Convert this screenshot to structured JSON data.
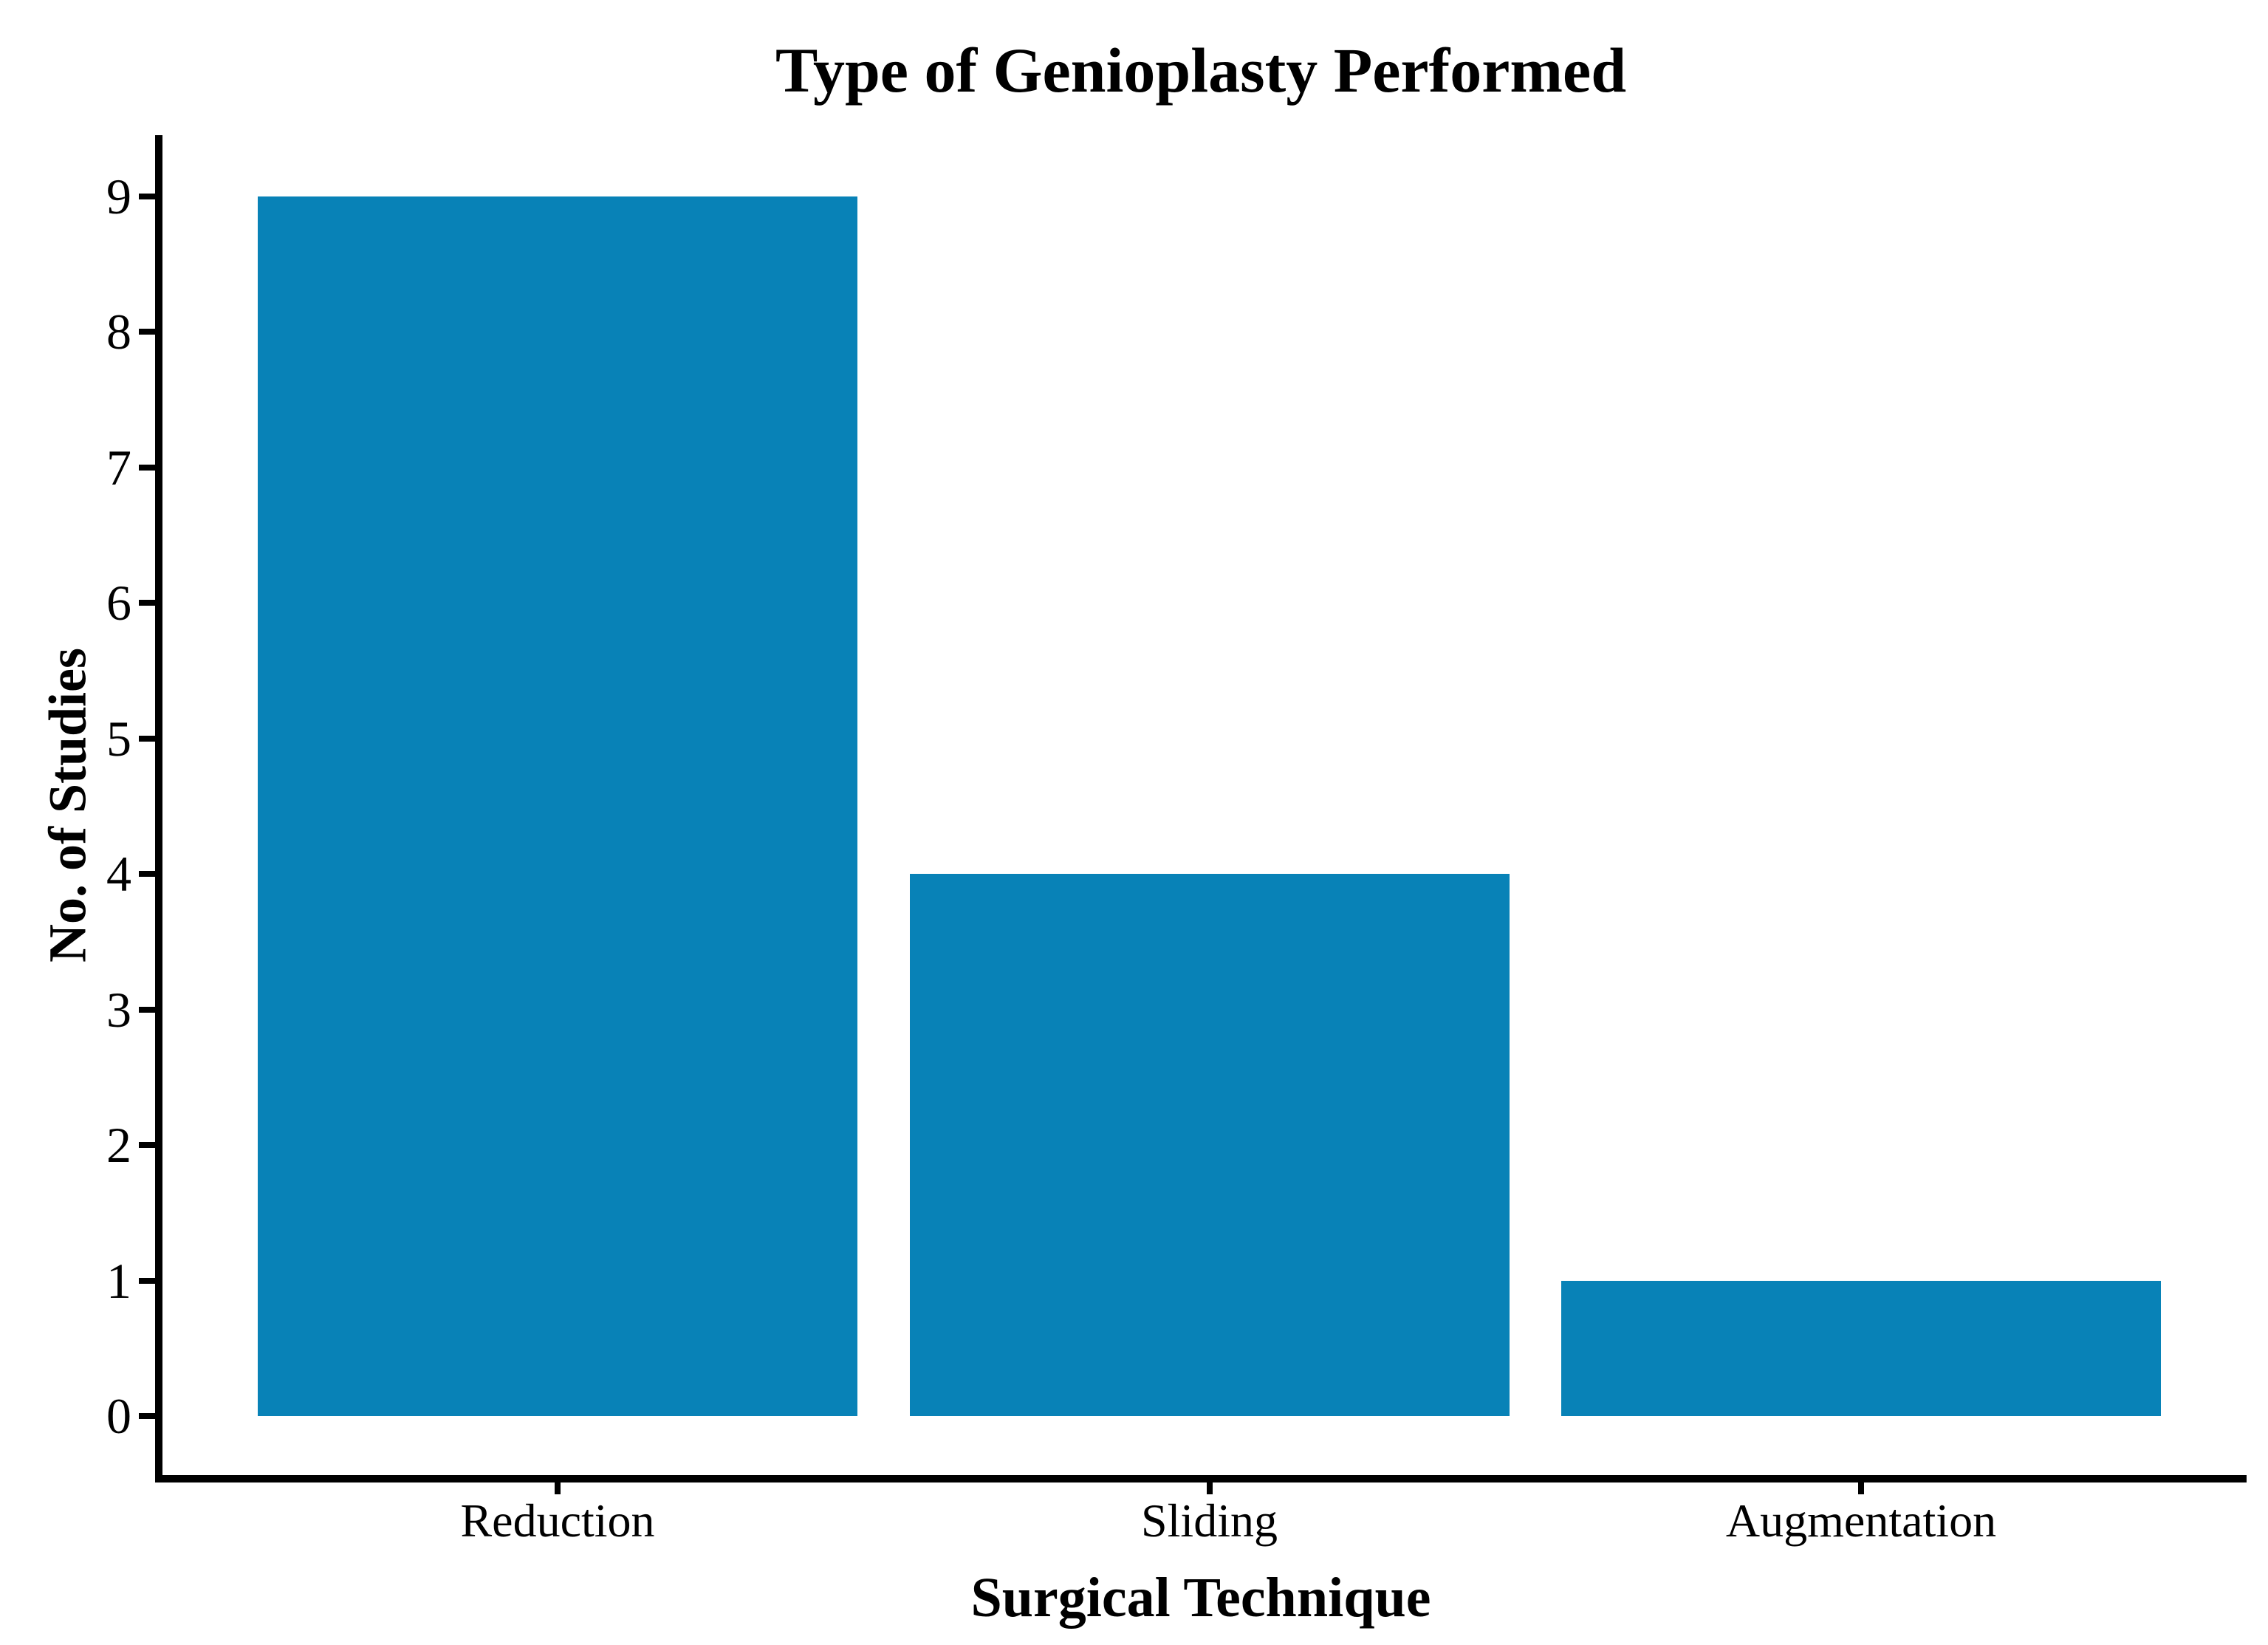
{
  "chart_data": {
    "type": "bar",
    "title": "Type of Genioplasty Performed",
    "xlabel": "Surgical Technique",
    "ylabel": "No. of Studies",
    "categories": [
      "Reduction",
      "Sliding",
      "Augmentation"
    ],
    "values": [
      9,
      4,
      1
    ],
    "ylim": [
      0,
      9
    ],
    "yticks": [
      0,
      1,
      2,
      3,
      4,
      5,
      6,
      7,
      8,
      9
    ],
    "bar_color": "#0882b7",
    "axis_color": "#000000",
    "background_color": "#ffffff",
    "grid": false,
    "legend": false
  }
}
